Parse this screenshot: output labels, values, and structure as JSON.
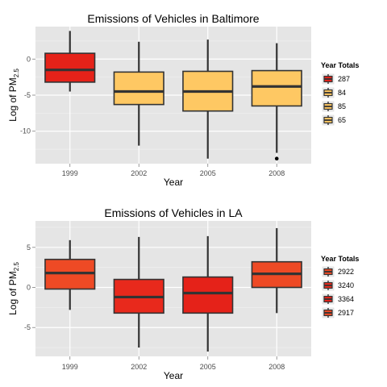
{
  "chart_data": [
    {
      "type": "box",
      "title": "Emissions of Vehicles in Baltimore",
      "xlabel": "Year",
      "ylabel_main": "Log of PM",
      "ylabel_sub": "2.5",
      "ylim": [
        -14.5,
        4.5
      ],
      "yticks": [
        0,
        -5,
        -10
      ],
      "ytick_labels": [
        "0",
        "-5",
        "-10"
      ],
      "categories": [
        "1999",
        "2002",
        "2005",
        "2008"
      ],
      "boxes": [
        {
          "category": "1999",
          "whisker_low": -4.5,
          "q1": -3.2,
          "median": -1.5,
          "q3": 0.8,
          "whisker_high": 3.9,
          "fill": "#e52219",
          "outliers": []
        },
        {
          "category": "2002",
          "whisker_low": -12.0,
          "q1": -6.3,
          "median": -4.5,
          "q3": -1.8,
          "whisker_high": 2.4,
          "fill": "#fec863",
          "outliers": []
        },
        {
          "category": "2005",
          "whisker_low": -13.8,
          "q1": -7.2,
          "median": -4.5,
          "q3": -1.7,
          "whisker_high": 2.7,
          "fill": "#fec863",
          "outliers": []
        },
        {
          "category": "2008",
          "whisker_low": -13.0,
          "q1": -6.5,
          "median": -3.8,
          "q3": -1.6,
          "whisker_high": 2.2,
          "fill": "#fec863",
          "outliers": [
            -13.8
          ]
        }
      ],
      "legend": {
        "title": "Year Totals",
        "placement": "right",
        "items": [
          {
            "label": "287",
            "color": "#e52219"
          },
          {
            "label": "84",
            "color": "#fec863"
          },
          {
            "label": "85",
            "color": "#fec863"
          },
          {
            "label": "65",
            "color": "#fec863"
          }
        ]
      },
      "grid": true,
      "panel_color": "#e5e5e5"
    },
    {
      "type": "box",
      "title": "Emissions of Vehicles in LA",
      "xlabel": "Year",
      "ylabel_main": "Log of PM",
      "ylabel_sub": "2.5",
      "ylim": [
        -8.6,
        8.3
      ],
      "yticks": [
        5,
        0,
        -5
      ],
      "ytick_labels": [
        "5",
        "0",
        "-5"
      ],
      "categories": [
        "1999",
        "2002",
        "2005",
        "2008"
      ],
      "boxes": [
        {
          "category": "1999",
          "whisker_low": -2.8,
          "q1": -0.2,
          "median": 1.8,
          "q3": 3.5,
          "whisker_high": 5.9,
          "fill": "#ee4a25",
          "outliers": []
        },
        {
          "category": "2002",
          "whisker_low": -7.5,
          "q1": -3.2,
          "median": -1.2,
          "q3": 1.0,
          "whisker_high": 6.3,
          "fill": "#e8291c",
          "outliers": []
        },
        {
          "category": "2005",
          "whisker_low": -8.0,
          "q1": -3.2,
          "median": -0.7,
          "q3": 1.3,
          "whisker_high": 6.4,
          "fill": "#e52219",
          "outliers": []
        },
        {
          "category": "2008",
          "whisker_low": -3.2,
          "q1": 0.0,
          "median": 1.7,
          "q3": 3.2,
          "whisker_high": 7.4,
          "fill": "#ee4a25",
          "outliers": []
        }
      ],
      "legend": {
        "title": "Year Totals",
        "placement": "right",
        "items": [
          {
            "label": "2922",
            "color": "#ee4a25"
          },
          {
            "label": "3240",
            "color": "#e8291c"
          },
          {
            "label": "3364",
            "color": "#e52219"
          },
          {
            "label": "2917",
            "color": "#ee4a25"
          }
        ]
      },
      "grid": true,
      "panel_color": "#e5e5e5"
    }
  ]
}
